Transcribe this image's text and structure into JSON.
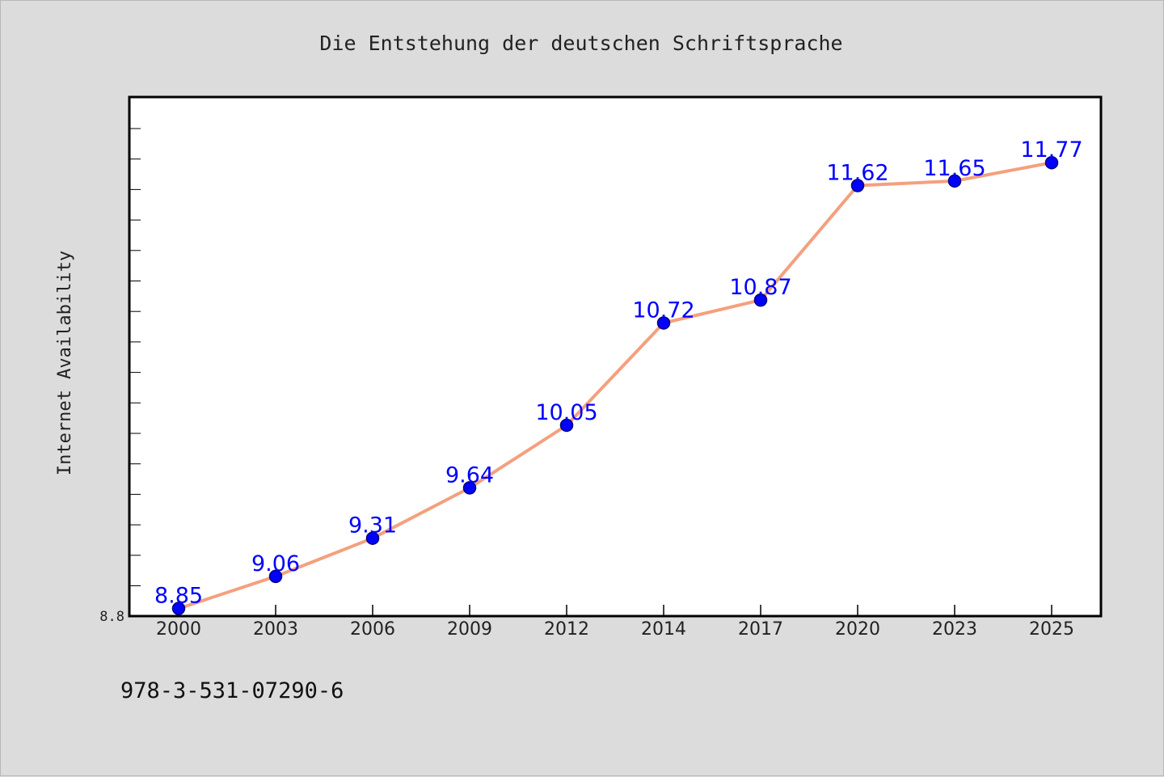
{
  "chart_data": {
    "type": "line",
    "title": "Die Entstehung der deutschen Schriftsprache",
    "xlabel": "",
    "ylabel": "Internet Availability",
    "categories": [
      "2000",
      "2003",
      "2006",
      "2009",
      "2012",
      "2014",
      "2017",
      "2020",
      "2023",
      "2025"
    ],
    "series": [
      {
        "values": [
          8.85,
          9.06,
          9.31,
          9.64,
          10.05,
          10.72,
          10.87,
          11.62,
          11.65,
          11.77
        ]
      }
    ],
    "data_labels": [
      "8.85",
      "9.06",
      "9.31",
      "9.64",
      "10.05",
      "10.72",
      "10.87",
      "11.62",
      "11.65",
      "11.77"
    ],
    "yticks": [
      8.8
    ],
    "ytick_labels": [
      "8.8"
    ],
    "ylim": [
      8.8,
      12.2
    ],
    "grid": false,
    "legend": "none",
    "colors": {
      "line": "#f4a07e",
      "marker": "#0000ff",
      "marker_edge": "#000080",
      "data_label": "#0000ff",
      "background": "#dcdcdc",
      "plot_area": "#ffffff"
    }
  },
  "footer": {
    "isbn": "978-3-531-07290-6"
  }
}
